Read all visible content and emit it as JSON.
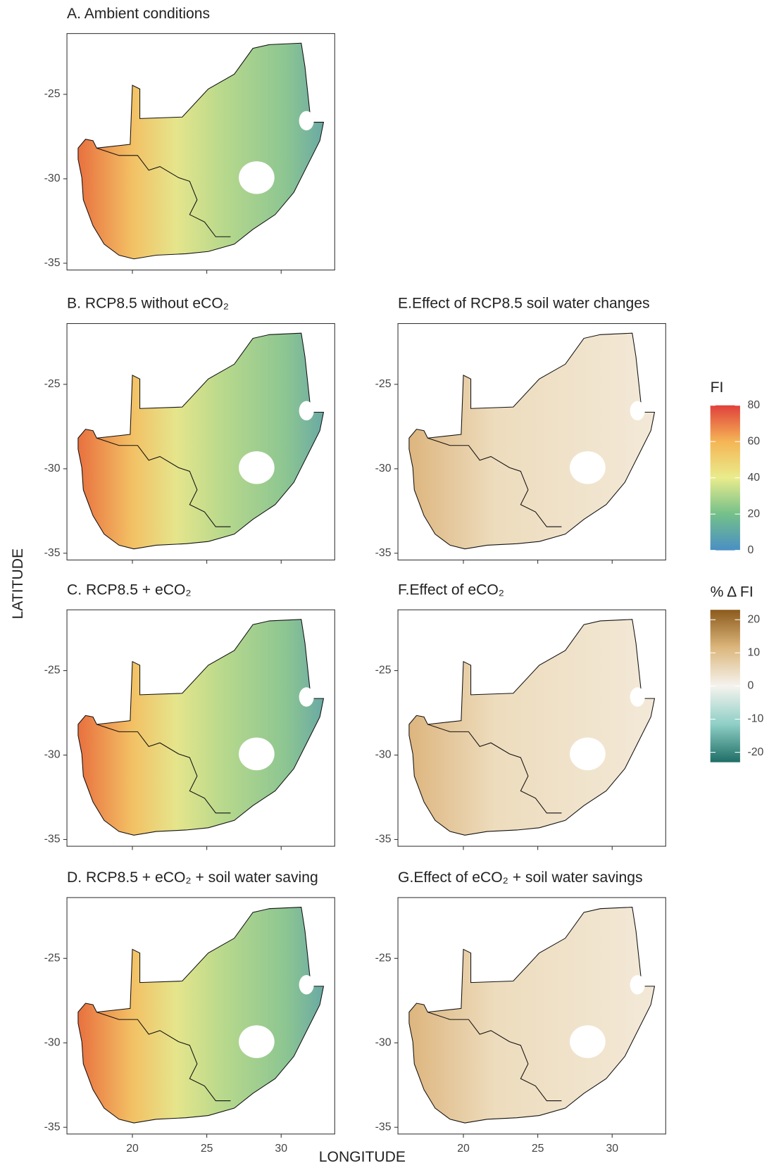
{
  "axis_labels": {
    "x": "LONGITUDE",
    "y": "LATITUDE"
  },
  "xlim": [
    15.6,
    33.6
  ],
  "ylim": [
    -35.4,
    -21.4
  ],
  "xticks": [
    20,
    25,
    30
  ],
  "yticks": [
    -25,
    -30,
    -35
  ],
  "legends": [
    {
      "title": "FI",
      "lim": [
        0,
        80
      ],
      "ticks": [
        80,
        60,
        40,
        20,
        0
      ],
      "colors": [
        "#4a8fc4",
        "#74c08a",
        "#e9ec8c",
        "#f5b555",
        "#e0403c"
      ],
      "panels": [
        "A. Ambient conditions",
        "B. RCP8.5 without eCO₂",
        "C. RCP8.5 + eCO₂",
        "D. RCP8.5 + eCO₂ + soil water saving"
      ]
    },
    {
      "title": "% Δ FI",
      "lim": [
        -23,
        23
      ],
      "ticks": [
        20,
        10,
        0,
        -10,
        -20
      ],
      "colors": [
        "#1f6e66",
        "#8fcfc6",
        "#f5f3ee",
        "#dcb77d",
        "#8c5a1c"
      ],
      "panels": [
        "E.Effect of RCP8.5 soil water changes",
        "F.Effect of eCO₂",
        "G.Effect of eCO₂ + soil water savings"
      ]
    }
  ]
}
